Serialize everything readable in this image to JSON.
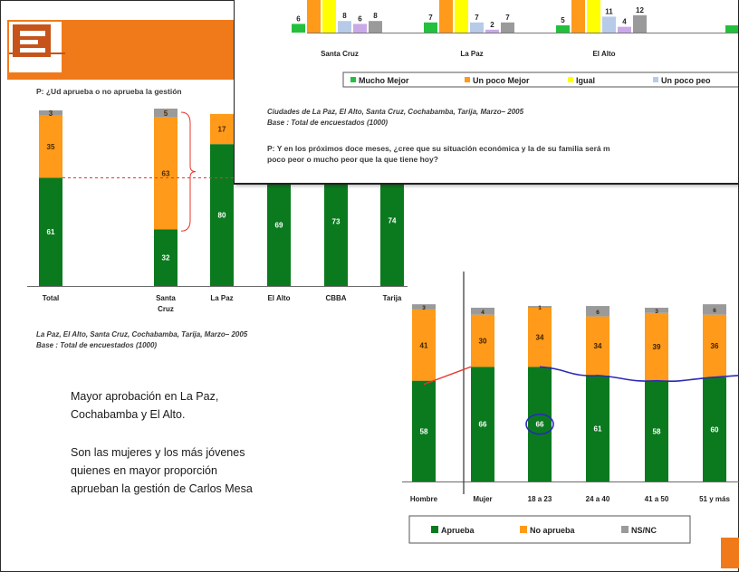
{
  "question_top": "P: ¿Ud aprueba o no aprueba la gestión",
  "overlay": {
    "source_line1": "Ciudades de La Paz, El Alto, Santa Cruz, Cochabamba, Tarija, Marzo– 2005",
    "source_line2": "Base : Total de encuestados (1000)",
    "question_line1": "P: Y en los próximos doce meses, ¿cree que su situación económica y la de su familia será m",
    "question_line2": "poco peor o mucho peor que la que tiene hoy?",
    "legend": [
      "Mucho Mejor",
      "Un poco Mejor",
      "Igual",
      "Un poco peo"
    ]
  },
  "left_source_line1": "La Paz, El Alto, Santa Cruz, Cochabamba, Tarija,  Marzo– 2005",
  "left_source_line2": "Base : Total de encuestados (1000)",
  "bullet_1_line1": "Mayor aprobación en La Paz,",
  "bullet_1_line2": "Cochabamba y El Alto.",
  "bullet_2_line1": "Son las mujeres y los más jóvenes",
  "bullet_2_line2": "quienes en mayor proporción",
  "bullet_2_line3": "aprueban la gestión de Carlos Mesa",
  "colors": {
    "aprueba": "#0b7a1f",
    "no_aprueba": "#ff9a1a",
    "nsnc": "#9a9a9a",
    "mucho_mejor": "#22c03c",
    "un_poco_mejor": "#ff9a1a",
    "igual": "#ffff00",
    "un_poco_peor": "#b7cbe8",
    "peor": "#c9a9e8",
    "banner": "#f07a1a"
  },
  "chart_data": [
    {
      "type": "bar",
      "stacked": true,
      "categories": [
        "Total",
        "Santa Cruz",
        "La Paz",
        "El Alto",
        "CBBA",
        "Tarija"
      ],
      "series": [
        {
          "name": "Aprueba",
          "values": [
            61,
            32,
            80,
            69,
            73,
            74
          ]
        },
        {
          "name": "No aprueba",
          "values": [
            35,
            63,
            17,
            null,
            null,
            null
          ]
        },
        {
          "name": "NS/NC",
          "values": [
            3,
            5,
            null,
            null,
            null,
            null
          ]
        }
      ],
      "ylim": [
        0,
        100
      ]
    },
    {
      "type": "bar",
      "stacked": true,
      "categories": [
        "Hombre",
        "Mujer",
        "18 a 23",
        "24 a 40",
        "41 a 50",
        "51 y más"
      ],
      "series": [
        {
          "name": "Aprueba",
          "values": [
            58,
            66,
            66,
            61,
            58,
            60
          ]
        },
        {
          "name": "No aprueba",
          "values": [
            41,
            30,
            34,
            34,
            39,
            36
          ]
        },
        {
          "name": "NS/NC",
          "values": [
            3,
            4,
            1,
            6,
            3,
            6
          ]
        }
      ],
      "legend": [
        "Aprueba",
        "No aprueba",
        "NS/NC"
      ],
      "legend_position": "bottom",
      "ylim": [
        0,
        100
      ]
    },
    {
      "type": "bar",
      "categories": [
        "Santa Cruz",
        "La Paz",
        "El Alto"
      ],
      "series": [
        {
          "name": "Mucho Mejor",
          "values": [
            6,
            7,
            5
          ]
        },
        {
          "name": "Un poco Mejor",
          "values": [
            null,
            null,
            null
          ]
        },
        {
          "name": "Igual",
          "values": [
            null,
            null,
            null
          ]
        },
        {
          "name": "Un poco peor",
          "values": [
            8,
            7,
            11
          ]
        },
        {
          "name": "",
          "values": [
            6,
            2,
            4
          ]
        },
        {
          "name": "",
          "values": [
            8,
            7,
            12
          ]
        }
      ],
      "legend": [
        "Mucho Mejor",
        "Un poco Mejor",
        "Igual",
        "Un poco peo"
      ],
      "legend_position": "bottom"
    }
  ]
}
